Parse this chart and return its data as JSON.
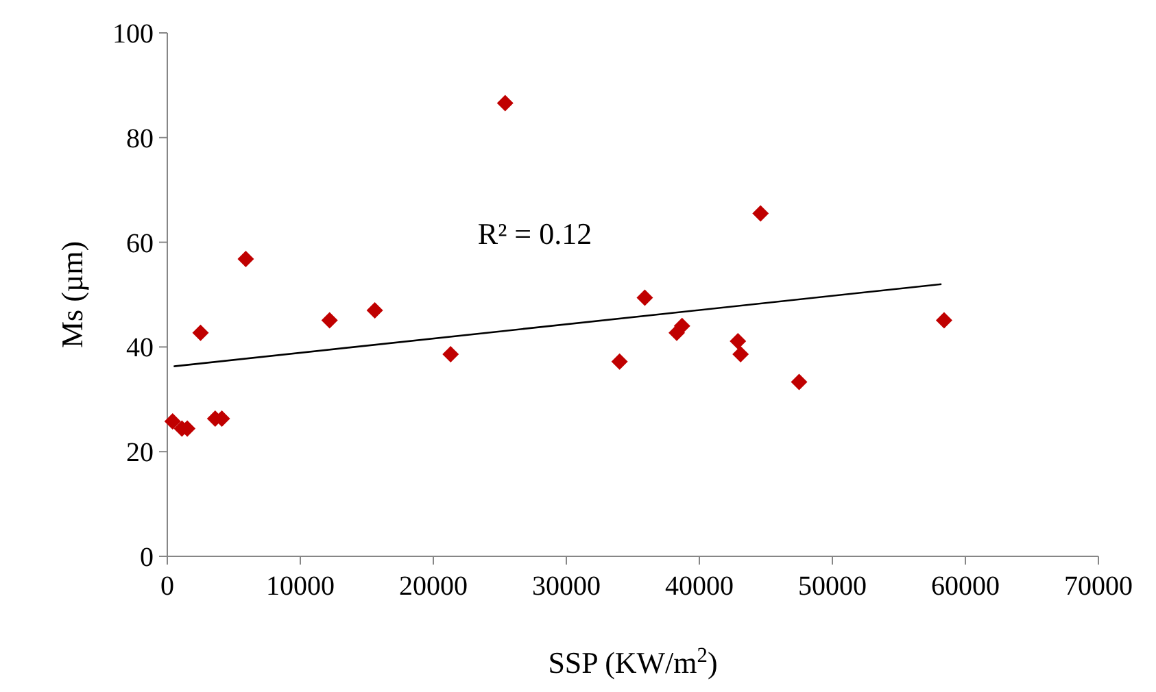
{
  "chart_data": {
    "type": "scatter",
    "xlabel": "SSP (KW/m$^{2}$)",
    "ylabel": "Ms (µm)",
    "xlim": [
      0,
      70000
    ],
    "ylim": [
      0,
      100
    ],
    "xticks": [
      0,
      10000,
      20000,
      30000,
      40000,
      50000,
      60000,
      70000
    ],
    "yticks": [
      0,
      20,
      40,
      60,
      80,
      100
    ],
    "grid": false,
    "marker": "diamond",
    "annotations": [
      "R² = 0.12"
    ],
    "series": [
      {
        "color": "#c00000",
        "x": [
          400,
          1100,
          1500,
          2500,
          3600,
          4100,
          5900,
          12200,
          15600,
          21300,
          25400,
          34000,
          35900,
          38300,
          38700,
          42900,
          43100,
          47500,
          44600,
          58400
        ],
        "values": [
          25.8,
          24.4,
          24.4,
          42.7,
          26.3,
          26.3,
          56.8,
          45.1,
          47.0,
          38.6,
          86.6,
          37.2,
          49.4,
          42.7,
          44.0,
          41.1,
          38.6,
          33.3,
          65.5,
          45.1
        ]
      },
      {
        "type": "line",
        "color": "#000000",
        "marker": "none",
        "line_style": "solid",
        "x": [
          480,
          58200
        ],
        "values": [
          36.3,
          52.0
        ]
      }
    ]
  }
}
